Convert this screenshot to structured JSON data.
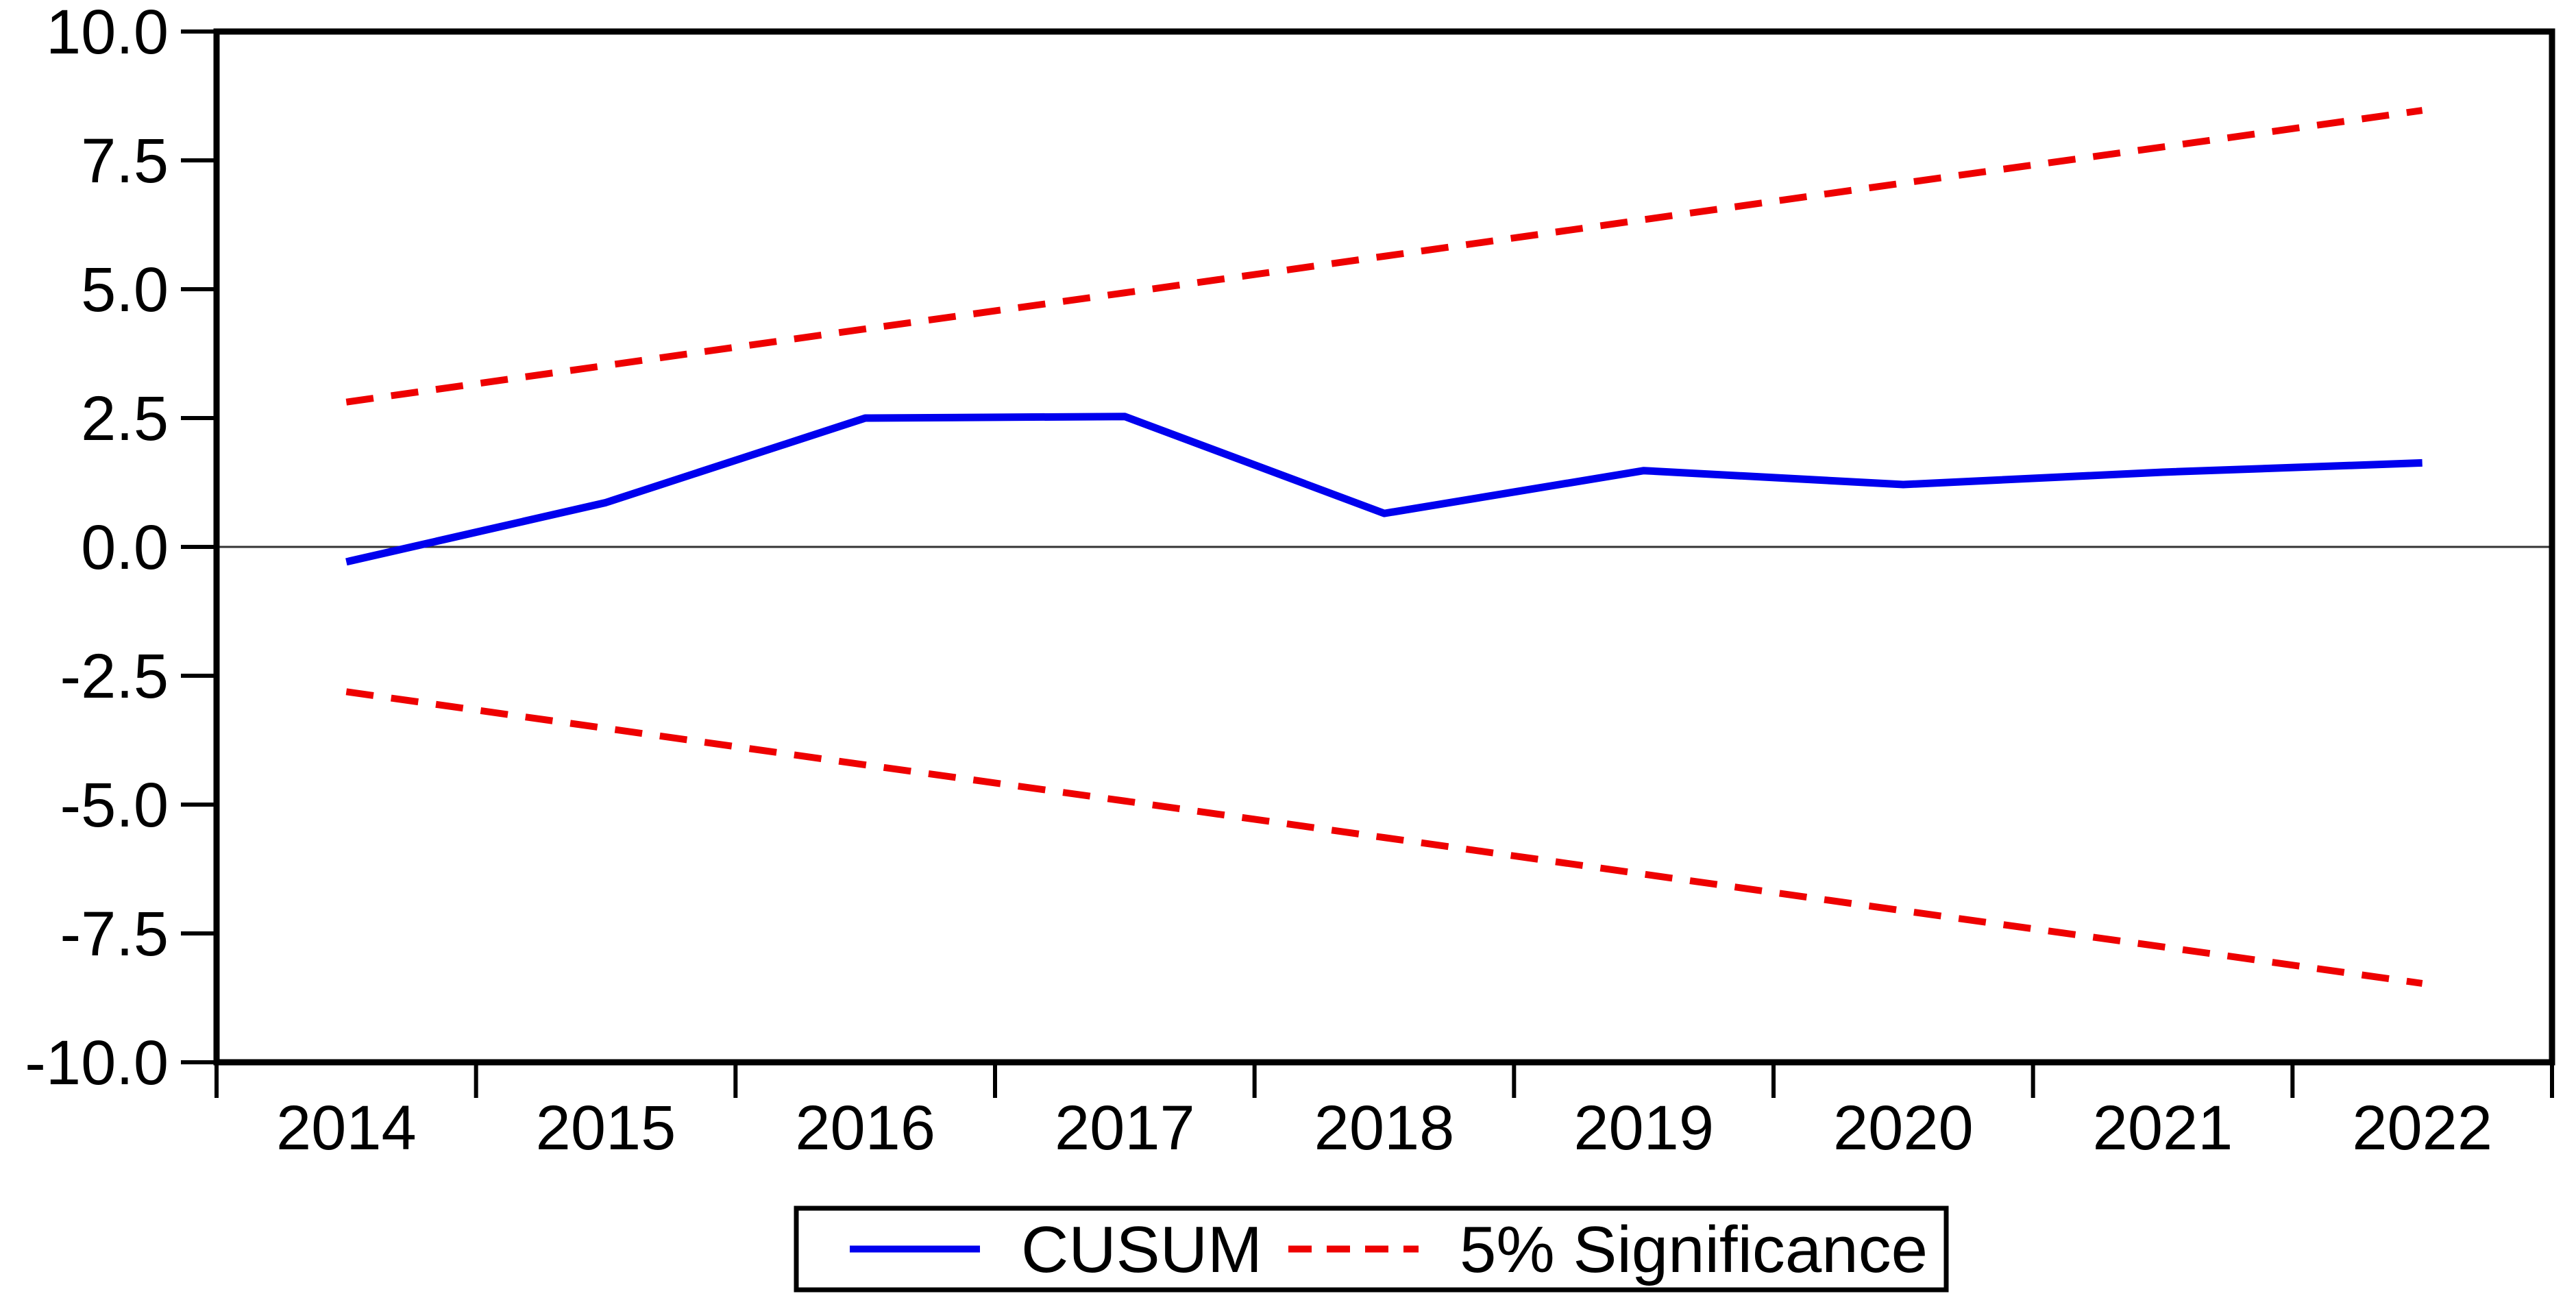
{
  "chart_data": {
    "type": "line",
    "title": "",
    "xlabel": "",
    "ylabel": "",
    "x": [
      2014,
      2015,
      2016,
      2017,
      2018,
      2019,
      2020,
      2021,
      2022
    ],
    "x_tick_labels": [
      "2014",
      "2015",
      "2016",
      "2017",
      "2018",
      "2019",
      "2020",
      "2021",
      "2022"
    ],
    "ylim": [
      -10,
      10
    ],
    "y_ticks": [
      10.0,
      7.5,
      5.0,
      2.5,
      0.0,
      -2.5,
      -5.0,
      -7.5,
      -10.0
    ],
    "y_tick_labels": [
      "10.0",
      "7.5",
      "5.0",
      "2.5",
      "0.0",
      "-2.5",
      "-5.0",
      "-7.5",
      "-10.0"
    ],
    "grid": "horizontal-zero-line-only",
    "zero_line_value": 0,
    "series": [
      {
        "name": "CUSUM",
        "color": "#0000ee",
        "style": "solid",
        "width": 11,
        "values": [
          -0.29,
          0.86,
          2.5,
          2.53,
          0.65,
          1.48,
          1.21,
          1.45,
          1.63
        ]
      },
      {
        "name": "5% Significance (upper)",
        "color": "#ee0000",
        "style": "dashed",
        "width": 10,
        "values": [
          2.81,
          3.52,
          4.23,
          4.93,
          5.64,
          6.35,
          7.06,
          7.76,
          8.47
        ]
      },
      {
        "name": "5% Significance (lower)",
        "color": "#ee0000",
        "style": "dashed",
        "width": 10,
        "values": [
          -2.81,
          -3.52,
          -4.23,
          -4.93,
          -5.64,
          -6.35,
          -7.06,
          -7.76,
          -8.47
        ]
      }
    ],
    "legend": {
      "position": "bottom-center",
      "border": true,
      "entries": [
        {
          "label": "CUSUM",
          "color": "#0000ee",
          "style": "solid"
        },
        {
          "label": "5% Significance",
          "color": "#ee0000",
          "style": "dashed"
        }
      ]
    },
    "colors": {
      "axis": "#000000",
      "tick_text": "#000000",
      "zero_line": "#333333",
      "background": "#ffffff",
      "cusum_blue": "#0000ee",
      "significance_red": "#ee0000"
    }
  }
}
